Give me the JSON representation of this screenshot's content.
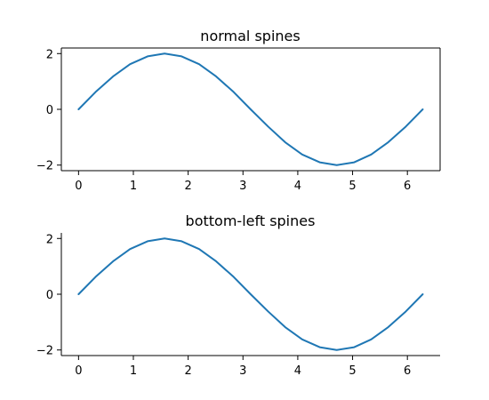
{
  "chart_data": [
    {
      "type": "line",
      "title": "normal spines",
      "xlabel": "",
      "ylabel": "",
      "xlim": [
        -0.314,
        6.597
      ],
      "ylim": [
        -2.2,
        2.2
      ],
      "xticks": [
        0,
        1,
        2,
        3,
        4,
        5,
        6
      ],
      "xtick_labels": [
        "0",
        "1",
        "2",
        "3",
        "4",
        "5",
        "6"
      ],
      "yticks": [
        -2,
        0,
        2
      ],
      "ytick_labels": [
        "−2",
        "0",
        "2"
      ],
      "visible_spines": [
        "left",
        "bottom",
        "right",
        "top"
      ],
      "grid": false,
      "series": [
        {
          "color": "#1f77b4",
          "x": [
            0,
            0.31,
            0.63,
            0.94,
            1.26,
            1.57,
            1.88,
            2.2,
            2.51,
            2.83,
            3.14,
            3.46,
            3.77,
            4.08,
            4.4,
            4.71,
            5.03,
            5.34,
            5.65,
            5.97,
            6.28
          ],
          "y": [
            0,
            0.62,
            1.18,
            1.62,
            1.9,
            2.0,
            1.9,
            1.62,
            1.18,
            0.62,
            0,
            -0.62,
            -1.18,
            -1.62,
            -1.9,
            -2.0,
            -1.9,
            -1.62,
            -1.18,
            -0.62,
            0
          ]
        }
      ]
    },
    {
      "type": "line",
      "title": "bottom-left spines",
      "xlabel": "",
      "ylabel": "",
      "xlim": [
        -0.314,
        6.597
      ],
      "ylim": [
        -2.2,
        2.2
      ],
      "xticks": [
        0,
        1,
        2,
        3,
        4,
        5,
        6
      ],
      "xtick_labels": [
        "0",
        "1",
        "2",
        "3",
        "4",
        "5",
        "6"
      ],
      "yticks": [
        -2,
        0,
        2
      ],
      "ytick_labels": [
        "−2",
        "0",
        "2"
      ],
      "visible_spines": [
        "left",
        "bottom"
      ],
      "grid": false,
      "series": [
        {
          "color": "#1f77b4",
          "x": [
            0,
            0.31,
            0.63,
            0.94,
            1.26,
            1.57,
            1.88,
            2.2,
            2.51,
            2.83,
            3.14,
            3.46,
            3.77,
            4.08,
            4.4,
            4.71,
            5.03,
            5.34,
            5.65,
            5.97,
            6.28
          ],
          "y": [
            0,
            0.62,
            1.18,
            1.62,
            1.9,
            2.0,
            1.9,
            1.62,
            1.18,
            0.62,
            0,
            -0.62,
            -1.18,
            -1.62,
            -1.9,
            -2.0,
            -1.9,
            -1.62,
            -1.18,
            -0.62,
            0
          ]
        }
      ]
    }
  ]
}
